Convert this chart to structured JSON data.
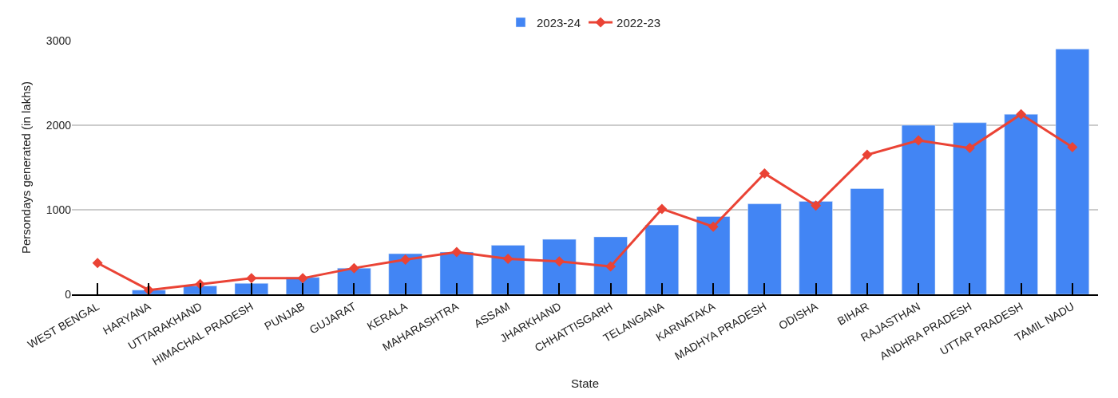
{
  "chart_data": {
    "type": "bar",
    "xlabel": "State",
    "ylabel": "Persondays generated (in lakhs)",
    "categories": [
      "WEST BENGAL",
      "HARYANA",
      "UTTARAKHAND",
      "HIMACHAL PRADESH",
      "PUNJAB",
      "GUJARAT",
      "KERALA",
      "MAHARASHTRA",
      "ASSAM",
      "JHARKHAND",
      "CHHATTISGARH",
      "TELANGANA",
      "KARNATAKA",
      "MADHYA PRADESH",
      "ODISHA",
      "BIHAR",
      "RAJASTHAN",
      "ANDHRA PRADESH",
      "UTTAR PRADESH",
      "TAMIL NADU"
    ],
    "series": [
      {
        "name": "2023-24",
        "color": "#4285f4",
        "values": [
          null,
          50,
          100,
          130,
          200,
          310,
          480,
          500,
          580,
          650,
          680,
          820,
          920,
          1070,
          1100,
          1250,
          2000,
          2030,
          2130,
          2900
        ]
      },
      {
        "name": "2022-23",
        "type": "line",
        "color": "#ea4335",
        "marker": "diamond",
        "values": [
          370,
          50,
          120,
          190,
          190,
          310,
          410,
          500,
          420,
          390,
          330,
          1010,
          800,
          1430,
          1050,
          1650,
          1820,
          1730,
          2130,
          1740
        ]
      }
    ],
    "ylim": [
      0,
      3000
    ],
    "yticks": [
      0,
      1000,
      2000,
      3000
    ],
    "grid": "y",
    "legend": "top"
  }
}
